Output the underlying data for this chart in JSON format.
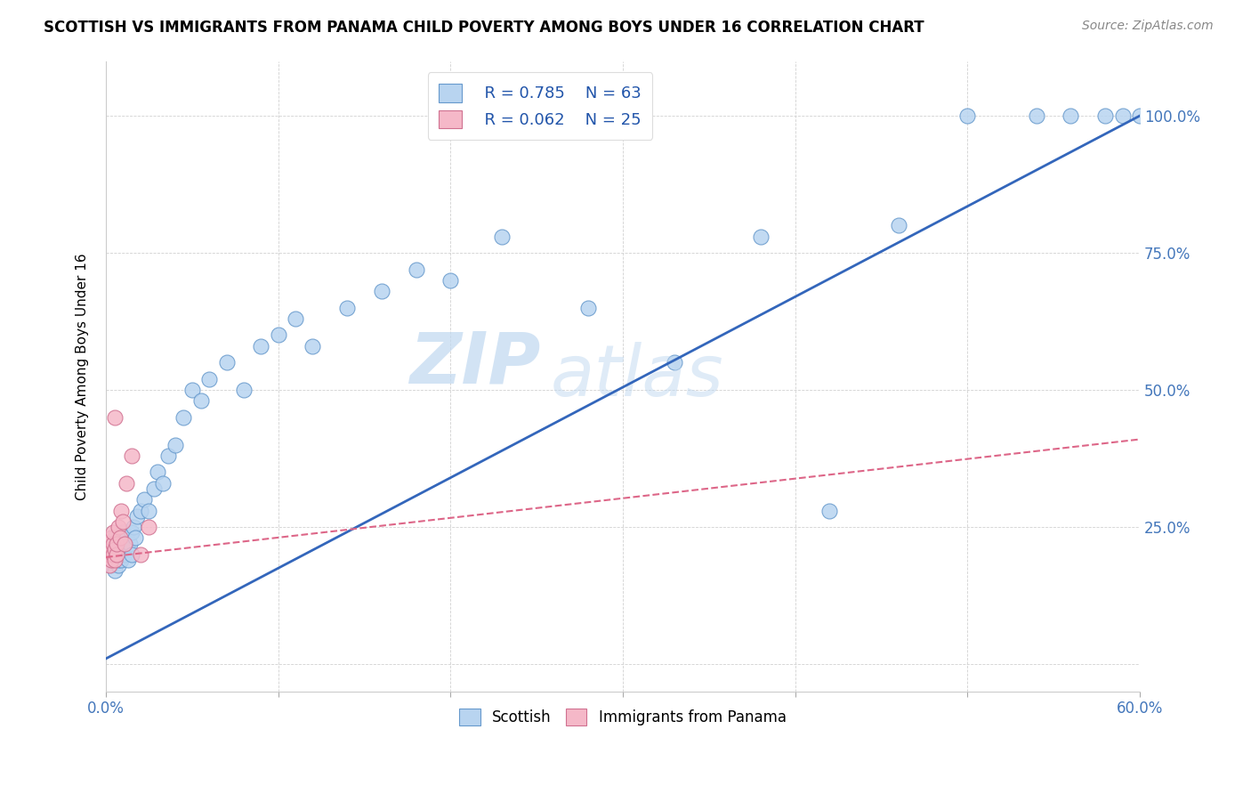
{
  "title": "SCOTTISH VS IMMIGRANTS FROM PANAMA CHILD POVERTY AMONG BOYS UNDER 16 CORRELATION CHART",
  "source": "Source: ZipAtlas.com",
  "ylabel": "Child Poverty Among Boys Under 16",
  "xlim": [
    0.0,
    0.6
  ],
  "ylim": [
    -0.05,
    1.1
  ],
  "legend_r1": "R = 0.785",
  "legend_n1": "N = 63",
  "legend_r2": "R = 0.062",
  "legend_n2": "N = 25",
  "color_scottish_face": "#b8d4f0",
  "color_scottish_edge": "#6699cc",
  "color_panama_face": "#f5b8c8",
  "color_panama_edge": "#d07090",
  "color_line_scottish": "#3366bb",
  "color_line_panama": "#dd6688",
  "watermark_zip": "ZIP",
  "watermark_atlas": "atlas",
  "scottish_x": [
    0.002,
    0.003,
    0.003,
    0.004,
    0.004,
    0.005,
    0.005,
    0.006,
    0.006,
    0.007,
    0.007,
    0.007,
    0.008,
    0.008,
    0.009,
    0.009,
    0.01,
    0.01,
    0.011,
    0.011,
    0.012,
    0.013,
    0.013,
    0.014,
    0.015,
    0.015,
    0.016,
    0.017,
    0.018,
    0.02,
    0.022,
    0.025,
    0.028,
    0.03,
    0.033,
    0.036,
    0.04,
    0.045,
    0.05,
    0.055,
    0.06,
    0.07,
    0.08,
    0.09,
    0.1,
    0.11,
    0.12,
    0.14,
    0.16,
    0.18,
    0.2,
    0.23,
    0.28,
    0.33,
    0.38,
    0.42,
    0.46,
    0.5,
    0.54,
    0.56,
    0.58,
    0.59,
    0.6
  ],
  "scottish_y": [
    0.2,
    0.22,
    0.18,
    0.19,
    0.21,
    0.17,
    0.23,
    0.2,
    0.22,
    0.18,
    0.19,
    0.21,
    0.2,
    0.22,
    0.19,
    0.23,
    0.21,
    0.24,
    0.2,
    0.22,
    0.23,
    0.21,
    0.19,
    0.22,
    0.24,
    0.2,
    0.25,
    0.23,
    0.27,
    0.28,
    0.3,
    0.28,
    0.32,
    0.35,
    0.33,
    0.38,
    0.4,
    0.45,
    0.5,
    0.48,
    0.52,
    0.55,
    0.5,
    0.58,
    0.6,
    0.63,
    0.58,
    0.65,
    0.68,
    0.72,
    0.7,
    0.78,
    0.65,
    0.55,
    0.78,
    0.28,
    0.8,
    1.0,
    1.0,
    1.0,
    1.0,
    1.0,
    1.0
  ],
  "panama_x": [
    0.001,
    0.001,
    0.002,
    0.002,
    0.002,
    0.003,
    0.003,
    0.003,
    0.004,
    0.004,
    0.004,
    0.005,
    0.005,
    0.005,
    0.006,
    0.006,
    0.007,
    0.008,
    0.009,
    0.01,
    0.011,
    0.012,
    0.015,
    0.02,
    0.025
  ],
  "panama_y": [
    0.2,
    0.22,
    0.18,
    0.2,
    0.22,
    0.19,
    0.21,
    0.23,
    0.2,
    0.22,
    0.24,
    0.19,
    0.21,
    0.45,
    0.2,
    0.22,
    0.25,
    0.23,
    0.28,
    0.26,
    0.22,
    0.33,
    0.38,
    0.2,
    0.25
  ],
  "scottish_line_x": [
    0.0,
    0.6
  ],
  "scottish_line_y": [
    0.01,
    1.0
  ],
  "panama_line_x": [
    0.0,
    0.6
  ],
  "panama_line_y": [
    0.195,
    0.41
  ],
  "figsize": [
    14.06,
    8.92
  ],
  "dpi": 100
}
